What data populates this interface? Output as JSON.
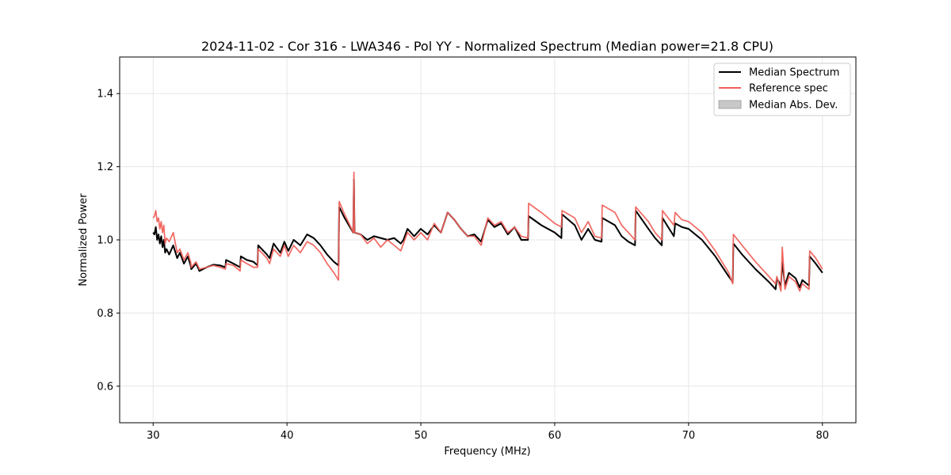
{
  "chart_data": {
    "type": "line",
    "title": "2024-11-02 - Cor 316 - LWA346 - Pol YY - Normalized Spectrum (Median power=21.8 CPU)",
    "xlabel": "Frequency (MHz)",
    "ylabel": "Normalized Power",
    "xlim": [
      27.5,
      82.5
    ],
    "ylim": [
      0.5,
      1.5
    ],
    "xticks": [
      30,
      40,
      50,
      60,
      70,
      80
    ],
    "yticks": [
      0.6,
      0.8,
      1.0,
      1.2,
      1.4
    ],
    "xtick_labels": [
      "30",
      "40",
      "50",
      "60",
      "70",
      "80"
    ],
    "ytick_labels": [
      "0.6",
      "0.8",
      "1.0",
      "1.2",
      "1.4"
    ],
    "grid": true,
    "legend_position": "top-right",
    "legend": [
      "Median Spectrum",
      "Reference spec",
      "Median Abs. Dev."
    ],
    "colors": {
      "median": "#000000",
      "reference": "#f0605a",
      "mad": "#c8c8c8"
    },
    "series": [
      {
        "name": "Median Spectrum",
        "x": [
          30.0,
          30.1,
          30.2,
          30.3,
          30.4,
          30.5,
          30.6,
          30.7,
          30.8,
          30.9,
          31.0,
          31.2,
          31.5,
          31.8,
          32.0,
          32.3,
          32.6,
          32.8,
          32.85,
          33.2,
          33.4,
          33.45,
          34.0,
          34.5,
          35.0,
          35.4,
          35.45,
          36.0,
          36.5,
          36.55,
          37.0,
          37.5,
          37.8,
          37.85,
          38.5,
          38.7,
          39.0,
          39.5,
          39.8,
          40.1,
          40.5,
          41.0,
          41.5,
          42.0,
          42.5,
          43.0,
          43.5,
          43.85,
          43.9,
          44.3,
          44.7,
          44.95,
          45.0,
          45.05,
          45.5,
          46.0,
          46.5,
          47.0,
          47.5,
          48.0,
          48.5,
          48.7,
          49.0,
          49.5,
          50.0,
          50.5,
          51.0,
          51.5,
          52.0,
          52.5,
          53.0,
          53.5,
          54.0,
          54.5,
          55.0,
          55.5,
          56.0,
          56.5,
          57.0,
          57.5,
          58.0,
          58.05,
          59.0,
          60.0,
          60.5,
          60.55,
          61.5,
          62.0,
          62.5,
          63.0,
          63.5,
          63.55,
          64.5,
          65.0,
          65.5,
          66.0,
          66.05,
          67.0,
          67.5,
          68.0,
          68.05,
          68.9,
          69.0,
          69.5,
          70.0,
          71.0,
          72.0,
          73.0,
          73.3,
          73.35,
          74.0,
          75.0,
          76.0,
          76.5,
          76.6,
          76.9,
          77.0,
          77.2,
          77.5,
          78.0,
          78.3,
          78.5,
          79.0,
          79.05,
          79.5,
          80.0
        ],
        "values": [
          1.02,
          1.015,
          1.035,
          1.0,
          1.015,
          0.99,
          1.01,
          0.98,
          1.0,
          0.965,
          0.975,
          0.96,
          0.985,
          0.95,
          0.965,
          0.935,
          0.955,
          0.93,
          0.92,
          0.935,
          0.92,
          0.915,
          0.925,
          0.932,
          0.93,
          0.925,
          0.945,
          0.935,
          0.925,
          0.955,
          0.945,
          0.94,
          0.93,
          0.985,
          0.96,
          0.95,
          0.99,
          0.965,
          0.995,
          0.97,
          1.0,
          0.985,
          1.015,
          1.005,
          0.985,
          0.96,
          0.94,
          0.93,
          1.09,
          1.06,
          1.035,
          1.02,
          1.165,
          1.02,
          1.015,
          1.0,
          1.01,
          1.005,
          1.0,
          1.005,
          0.99,
          1.0,
          1.03,
          1.01,
          1.03,
          1.015,
          1.04,
          1.02,
          1.075,
          1.055,
          1.03,
          1.01,
          1.015,
          0.995,
          1.055,
          1.035,
          1.045,
          1.015,
          1.035,
          1.0,
          1.0,
          1.065,
          1.04,
          1.02,
          1.005,
          1.07,
          1.04,
          1.0,
          1.03,
          1.0,
          0.995,
          1.06,
          1.04,
          1.01,
          0.995,
          0.985,
          1.08,
          1.03,
          1.005,
          0.985,
          1.06,
          1.01,
          1.045,
          1.035,
          1.03,
          1.0,
          0.955,
          0.9,
          0.885,
          0.99,
          0.96,
          0.92,
          0.885,
          0.865,
          0.895,
          0.875,
          0.94,
          0.875,
          0.91,
          0.895,
          0.87,
          0.89,
          0.875,
          0.955,
          0.935,
          0.91
        ]
      },
      {
        "name": "Reference spec",
        "x": [
          30.0,
          30.1,
          30.2,
          30.3,
          30.4,
          30.5,
          30.6,
          30.7,
          30.8,
          30.9,
          31.0,
          31.2,
          31.5,
          31.8,
          32.0,
          32.3,
          32.6,
          32.8,
          32.85,
          33.2,
          33.4,
          33.45,
          34.0,
          34.5,
          35.0,
          35.4,
          35.45,
          36.0,
          36.5,
          36.55,
          37.0,
          37.5,
          37.8,
          37.85,
          38.5,
          38.7,
          39.0,
          39.5,
          39.8,
          40.1,
          40.5,
          41.0,
          41.5,
          42.0,
          42.5,
          43.0,
          43.5,
          43.85,
          43.9,
          44.3,
          44.7,
          44.95,
          45.0,
          45.05,
          45.5,
          46.0,
          46.5,
          47.0,
          47.5,
          48.0,
          48.5,
          48.7,
          49.0,
          49.5,
          50.0,
          50.5,
          51.0,
          51.5,
          52.0,
          52.5,
          53.0,
          53.5,
          54.0,
          54.5,
          55.0,
          55.5,
          56.0,
          56.5,
          57.0,
          57.5,
          58.0,
          58.05,
          59.0,
          60.0,
          60.5,
          60.55,
          61.5,
          62.0,
          62.5,
          63.0,
          63.5,
          63.55,
          64.5,
          65.0,
          65.5,
          66.0,
          66.05,
          67.0,
          67.5,
          68.0,
          68.05,
          68.9,
          69.0,
          69.5,
          70.0,
          71.0,
          72.0,
          73.0,
          73.3,
          73.35,
          74.0,
          75.0,
          76.0,
          76.5,
          76.6,
          76.9,
          77.0,
          77.2,
          77.5,
          78.0,
          78.3,
          78.5,
          79.0,
          79.05,
          79.5,
          80.0
        ],
        "values": [
          1.06,
          1.065,
          1.08,
          1.05,
          1.06,
          1.03,
          1.05,
          1.02,
          1.04,
          0.99,
          1.005,
          0.995,
          1.02,
          0.965,
          0.975,
          0.945,
          0.965,
          0.94,
          0.925,
          0.94,
          0.925,
          0.92,
          0.925,
          0.93,
          0.925,
          0.92,
          0.935,
          0.93,
          0.915,
          0.945,
          0.935,
          0.925,
          0.925,
          0.975,
          0.95,
          0.935,
          0.975,
          0.955,
          0.985,
          0.955,
          0.985,
          0.965,
          0.995,
          0.985,
          0.965,
          0.935,
          0.91,
          0.89,
          1.105,
          1.07,
          1.04,
          1.02,
          1.185,
          1.02,
          1.015,
          0.99,
          1.005,
          0.98,
          1.0,
          0.985,
          0.97,
          0.99,
          1.02,
          1.0,
          1.02,
          1.0,
          1.045,
          1.02,
          1.075,
          1.055,
          1.03,
          1.01,
          1.01,
          0.985,
          1.06,
          1.04,
          1.05,
          1.02,
          1.035,
          1.01,
          1.005,
          1.1,
          1.075,
          1.045,
          1.035,
          1.08,
          1.06,
          1.02,
          1.05,
          1.01,
          1.005,
          1.095,
          1.075,
          1.04,
          1.02,
          1.0,
          1.09,
          1.05,
          1.02,
          1.0,
          1.08,
          1.04,
          1.075,
          1.055,
          1.05,
          1.02,
          0.97,
          0.91,
          0.88,
          1.015,
          0.985,
          0.94,
          0.9,
          0.88,
          0.9,
          0.86,
          0.98,
          0.865,
          0.9,
          0.885,
          0.86,
          0.88,
          0.865,
          0.97,
          0.95,
          0.92
        ]
      }
    ]
  }
}
